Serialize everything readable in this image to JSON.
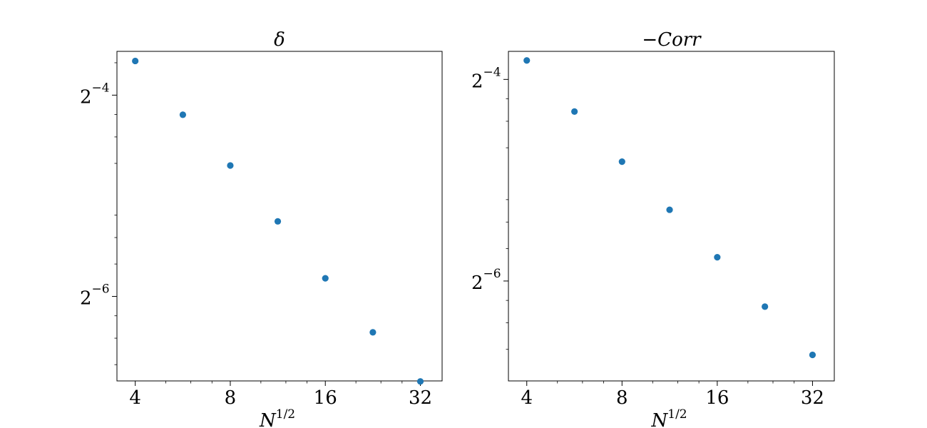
{
  "chart_data": [
    {
      "type": "scatter",
      "title": "δ",
      "xlabel": {
        "base": "N",
        "exponent": "1/2"
      },
      "ylabel": "",
      "xscale": "log2",
      "yscale": "log2",
      "grid": false,
      "legend": "none",
      "marker_color": "#1f77b4",
      "xlim": [
        3.5,
        37.5
      ],
      "ylim": [
        0.00873,
        0.0845
      ],
      "xticks": [
        {
          "value": 4,
          "label": "4"
        },
        {
          "value": 8,
          "label": "8"
        },
        {
          "value": 16,
          "label": "16"
        },
        {
          "value": 32,
          "label": "32"
        }
      ],
      "yticks": [
        {
          "value": 0.0625,
          "base": "2",
          "exponent": "−4"
        },
        {
          "value": 0.015625,
          "base": "2",
          "exponent": "−6"
        }
      ],
      "x": [
        4,
        5.66,
        8,
        11.31,
        16,
        22.63,
        32
      ],
      "y": [
        0.0791,
        0.0546,
        0.0385,
        0.0262,
        0.0177,
        0.0122,
        0.0087
      ]
    },
    {
      "type": "scatter",
      "title": "−Corr",
      "xlabel": {
        "base": "N",
        "exponent": "1/2"
      },
      "ylabel": "",
      "xscale": "log2",
      "yscale": "log2",
      "grid": false,
      "legend": "none",
      "marker_color": "#1f77b4",
      "xlim": [
        3.5,
        37.5
      ],
      "ylim": [
        0.00786,
        0.0758
      ],
      "xticks": [
        {
          "value": 4,
          "label": "4"
        },
        {
          "value": 8,
          "label": "8"
        },
        {
          "value": 16,
          "label": "16"
        },
        {
          "value": 32,
          "label": "32"
        }
      ],
      "yticks": [
        {
          "value": 0.0625,
          "base": "2",
          "exponent": "−4"
        },
        {
          "value": 0.015625,
          "base": "2",
          "exponent": "−6"
        }
      ],
      "x": [
        4,
        5.66,
        8,
        11.31,
        16,
        22.63,
        32
      ],
      "y": [
        0.0712,
        0.0501,
        0.0355,
        0.0255,
        0.0184,
        0.0131,
        0.0094
      ]
    }
  ]
}
